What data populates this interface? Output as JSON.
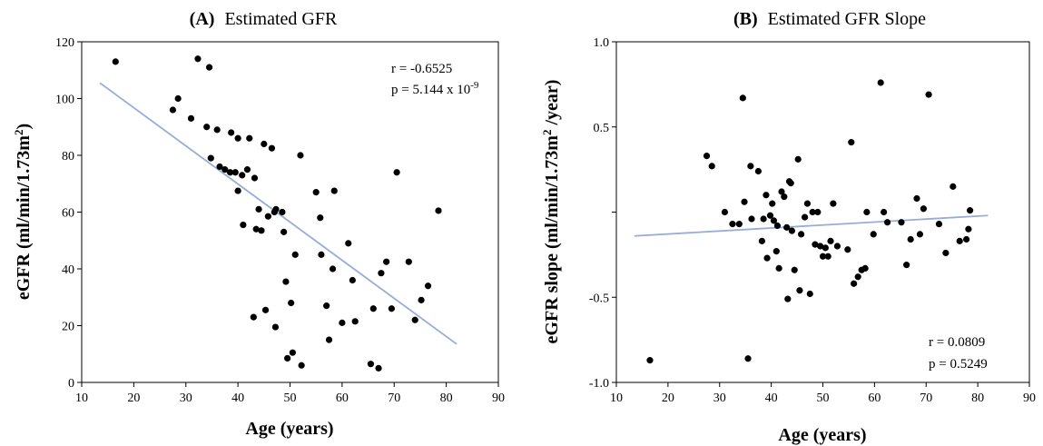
{
  "chart_data": [
    {
      "type": "scatter",
      "panel": "(A)",
      "title": "Estimated GFR",
      "xlabel": "Age (years)",
      "ylabel": "eGFR  (ml/min/1.73m",
      "ylabel_sup": "2",
      "ylabel_end": ")",
      "xlim": [
        10,
        90
      ],
      "ylim": [
        0,
        120
      ],
      "xticks": [
        10,
        20,
        30,
        40,
        50,
        60,
        70,
        80,
        90
      ],
      "yticks": [
        0,
        20,
        40,
        60,
        80,
        100,
        120
      ],
      "stats": {
        "r": "r = -0.6525",
        "p": "p = 5.144 x 10",
        "p_sup": "-9"
      },
      "regression": {
        "x": [
          13.5,
          82
        ],
        "y": [
          105.5,
          13.5
        ]
      },
      "points": [
        [
          16.5,
          113
        ],
        [
          27.5,
          96
        ],
        [
          28.5,
          100
        ],
        [
          31,
          93
        ],
        [
          32.3,
          114
        ],
        [
          34,
          90
        ],
        [
          34.5,
          111
        ],
        [
          34.8,
          79
        ],
        [
          36,
          89
        ],
        [
          36.5,
          76
        ],
        [
          37.5,
          75
        ],
        [
          38.5,
          74
        ],
        [
          38.7,
          88
        ],
        [
          39.5,
          74
        ],
        [
          40,
          86
        ],
        [
          40,
          67.5
        ],
        [
          40.8,
          73
        ],
        [
          41,
          55.5
        ],
        [
          41.8,
          75
        ],
        [
          42.2,
          86
        ],
        [
          43.2,
          72
        ],
        [
          43,
          23
        ],
        [
          43.5,
          54
        ],
        [
          44,
          61
        ],
        [
          44.5,
          53.5
        ],
        [
          45,
          84
        ],
        [
          45.3,
          25.5
        ],
        [
          45.8,
          58.5
        ],
        [
          46.5,
          82.5
        ],
        [
          47,
          60
        ],
        [
          47.3,
          61
        ],
        [
          47.2,
          19.5
        ],
        [
          48.5,
          60
        ],
        [
          48.8,
          53
        ],
        [
          49.2,
          35.5
        ],
        [
          49.5,
          8.5
        ],
        [
          50.2,
          28
        ],
        [
          50.5,
          10.5
        ],
        [
          51,
          45
        ],
        [
          52,
          80
        ],
        [
          52.2,
          6
        ],
        [
          55,
          67
        ],
        [
          55.8,
          58
        ],
        [
          56,
          45
        ],
        [
          57,
          27
        ],
        [
          57.5,
          15
        ],
        [
          58.2,
          40
        ],
        [
          58.5,
          67.5
        ],
        [
          60,
          21
        ],
        [
          61.2,
          49
        ],
        [
          62,
          36
        ],
        [
          62.5,
          21.5
        ],
        [
          65.5,
          6.5
        ],
        [
          66,
          26
        ],
        [
          67,
          5
        ],
        [
          67.5,
          38.5
        ],
        [
          68.5,
          42.5
        ],
        [
          69.5,
          26
        ],
        [
          70.5,
          74
        ],
        [
          72.8,
          42.5
        ],
        [
          74,
          22
        ],
        [
          75.2,
          29
        ],
        [
          76.5,
          34
        ],
        [
          78.5,
          60.5
        ]
      ]
    },
    {
      "type": "scatter",
      "panel": "(B)",
      "title": "Estimated GFR Slope",
      "xlabel": "Age (years)",
      "ylabel": "eGFR slope (ml/min/1.73m",
      "ylabel_sup": "2",
      "ylabel_end": " /year)",
      "xlim": [
        10,
        90
      ],
      "ylim": [
        -1.0,
        1.0
      ],
      "xticks": [
        10,
        20,
        30,
        40,
        50,
        60,
        70,
        80,
        90
      ],
      "yticks": [
        -1.0,
        -0.5,
        0.0,
        0.5,
        1.0
      ],
      "ytick_labels": [
        "-1.0",
        "-0.5",
        "",
        "0.5",
        "1.0"
      ],
      "stats": {
        "r": "r = 0.0809",
        "p": "p = 0.5249"
      },
      "regression": {
        "x": [
          13.5,
          82
        ],
        "y": [
          -0.14,
          -0.02
        ]
      },
      "points": [
        [
          16.5,
          -0.87
        ],
        [
          27.5,
          0.33
        ],
        [
          28.5,
          0.27
        ],
        [
          31,
          0.0
        ],
        [
          32.5,
          -0.07
        ],
        [
          33.8,
          -0.07
        ],
        [
          34.5,
          0.67
        ],
        [
          34.8,
          0.06
        ],
        [
          35.5,
          -0.86
        ],
        [
          36,
          0.27
        ],
        [
          36.2,
          -0.04
        ],
        [
          37.5,
          0.24
        ],
        [
          38.2,
          -0.17
        ],
        [
          38.5,
          -0.04
        ],
        [
          39,
          0.1
        ],
        [
          39.2,
          -0.27
        ],
        [
          39.8,
          -0.02
        ],
        [
          40.2,
          0.05
        ],
        [
          40.5,
          -0.05
        ],
        [
          41,
          -0.23
        ],
        [
          41.2,
          -0.08
        ],
        [
          41.5,
          -0.33
        ],
        [
          42,
          0.12
        ],
        [
          42.5,
          0.09
        ],
        [
          43,
          -0.09
        ],
        [
          43.2,
          -0.51
        ],
        [
          43.5,
          0.18
        ],
        [
          43.8,
          0.17
        ],
        [
          44,
          -0.11
        ],
        [
          44.5,
          -0.34
        ],
        [
          45.2,
          0.31
        ],
        [
          45.5,
          -0.46
        ],
        [
          45.8,
          -0.13
        ],
        [
          46.5,
          -0.03
        ],
        [
          47,
          0.05
        ],
        [
          47.5,
          -0.48
        ],
        [
          48,
          0.0
        ],
        [
          48.5,
          -0.19
        ],
        [
          49,
          0.0
        ],
        [
          49.5,
          -0.2
        ],
        [
          50,
          -0.26
        ],
        [
          50.5,
          -0.21
        ],
        [
          51,
          -0.26
        ],
        [
          51.5,
          -0.17
        ],
        [
          52,
          0.05
        ],
        [
          52.8,
          -0.2
        ],
        [
          54.8,
          -0.22
        ],
        [
          55.5,
          0.41
        ],
        [
          56,
          -0.42
        ],
        [
          56.8,
          -0.38
        ],
        [
          57.5,
          -0.34
        ],
        [
          58.2,
          -0.33
        ],
        [
          58.5,
          0.0
        ],
        [
          59.8,
          -0.13
        ],
        [
          61.2,
          0.76
        ],
        [
          61.8,
          0.0
        ],
        [
          62.5,
          -0.06
        ],
        [
          65.2,
          -0.06
        ],
        [
          66.2,
          -0.31
        ],
        [
          67,
          -0.16
        ],
        [
          68.2,
          0.08
        ],
        [
          68.8,
          -0.13
        ],
        [
          69.5,
          0.02
        ],
        [
          70.5,
          0.69
        ],
        [
          72.5,
          -0.07
        ],
        [
          73.8,
          -0.24
        ],
        [
          75.2,
          0.15
        ],
        [
          76.5,
          -0.17
        ],
        [
          77.8,
          -0.16
        ],
        [
          78.2,
          -0.1
        ],
        [
          78.5,
          0.01
        ]
      ]
    }
  ]
}
